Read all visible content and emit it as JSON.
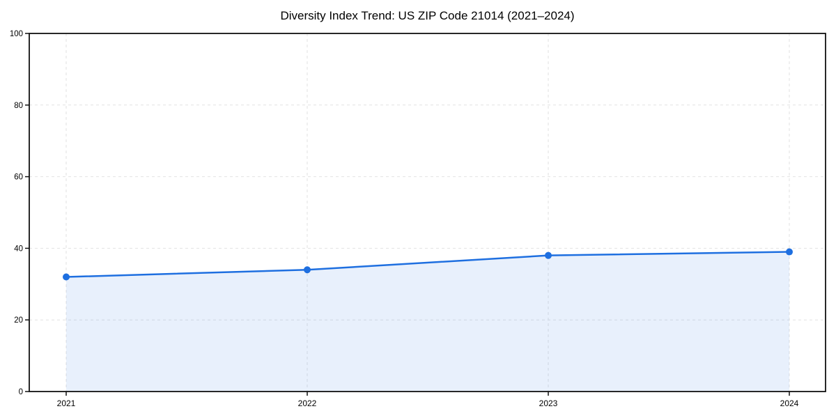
{
  "chart_data": {
    "type": "line",
    "title": "Diversity Index Trend: US ZIP Code 21014 (2021–2024)",
    "series_name": "Diversity Index",
    "x": [
      "2021",
      "2022",
      "2023",
      "2024"
    ],
    "values": [
      32,
      34,
      38,
      39
    ],
    "xlabel": "",
    "ylabel": "",
    "ylim": [
      0,
      100
    ],
    "yticks": [
      0,
      20,
      40,
      60,
      80,
      100
    ],
    "grid": true,
    "grid_style": "dashed",
    "area_fill": true,
    "legend": "none",
    "colors": {
      "line": "#1e6fe0",
      "marker": "#1e6fe0",
      "fill": "rgba(30,111,224,0.10)",
      "gridline": "#e2e2e2",
      "spine": "#111111",
      "text": "#000000",
      "background": "#ffffff"
    }
  }
}
